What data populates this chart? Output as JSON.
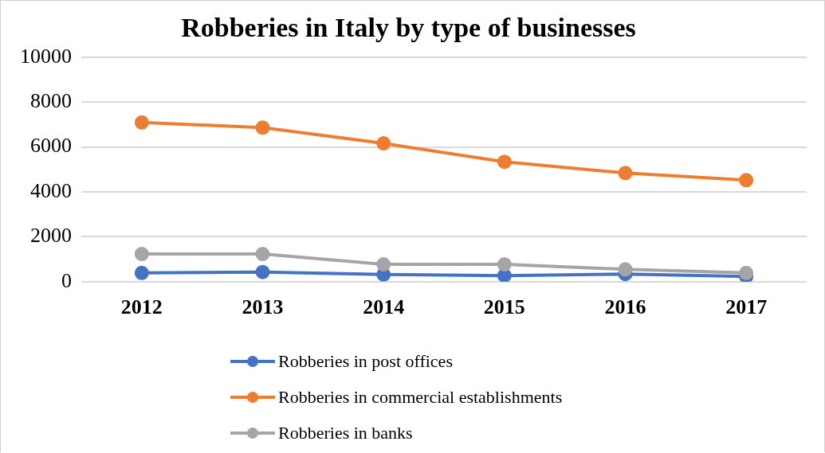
{
  "chart_data": {
    "type": "line",
    "title": "Robberies in Italy by type of businesses",
    "categories": [
      "2012",
      "2013",
      "2014",
      "2015",
      "2016",
      "2017"
    ],
    "series": [
      {
        "name": "Robberies in post offices",
        "color": "#4472c4",
        "values": [
          390,
          430,
          320,
          270,
          340,
          230
        ]
      },
      {
        "name": "Robberies in commercial establishments",
        "color": "#ed7d31",
        "values": [
          7090,
          6860,
          6160,
          5340,
          4840,
          4520
        ]
      },
      {
        "name": "Robberies in banks",
        "color": "#a5a5a5",
        "values": [
          1230,
          1230,
          770,
          770,
          550,
          390
        ]
      }
    ],
    "ylim": [
      0,
      10000
    ],
    "yticks": [
      0,
      2000,
      4000,
      6000,
      8000,
      10000
    ],
    "grid": "y",
    "legend": "bottom",
    "marker": "circle",
    "line_style": "solid"
  }
}
